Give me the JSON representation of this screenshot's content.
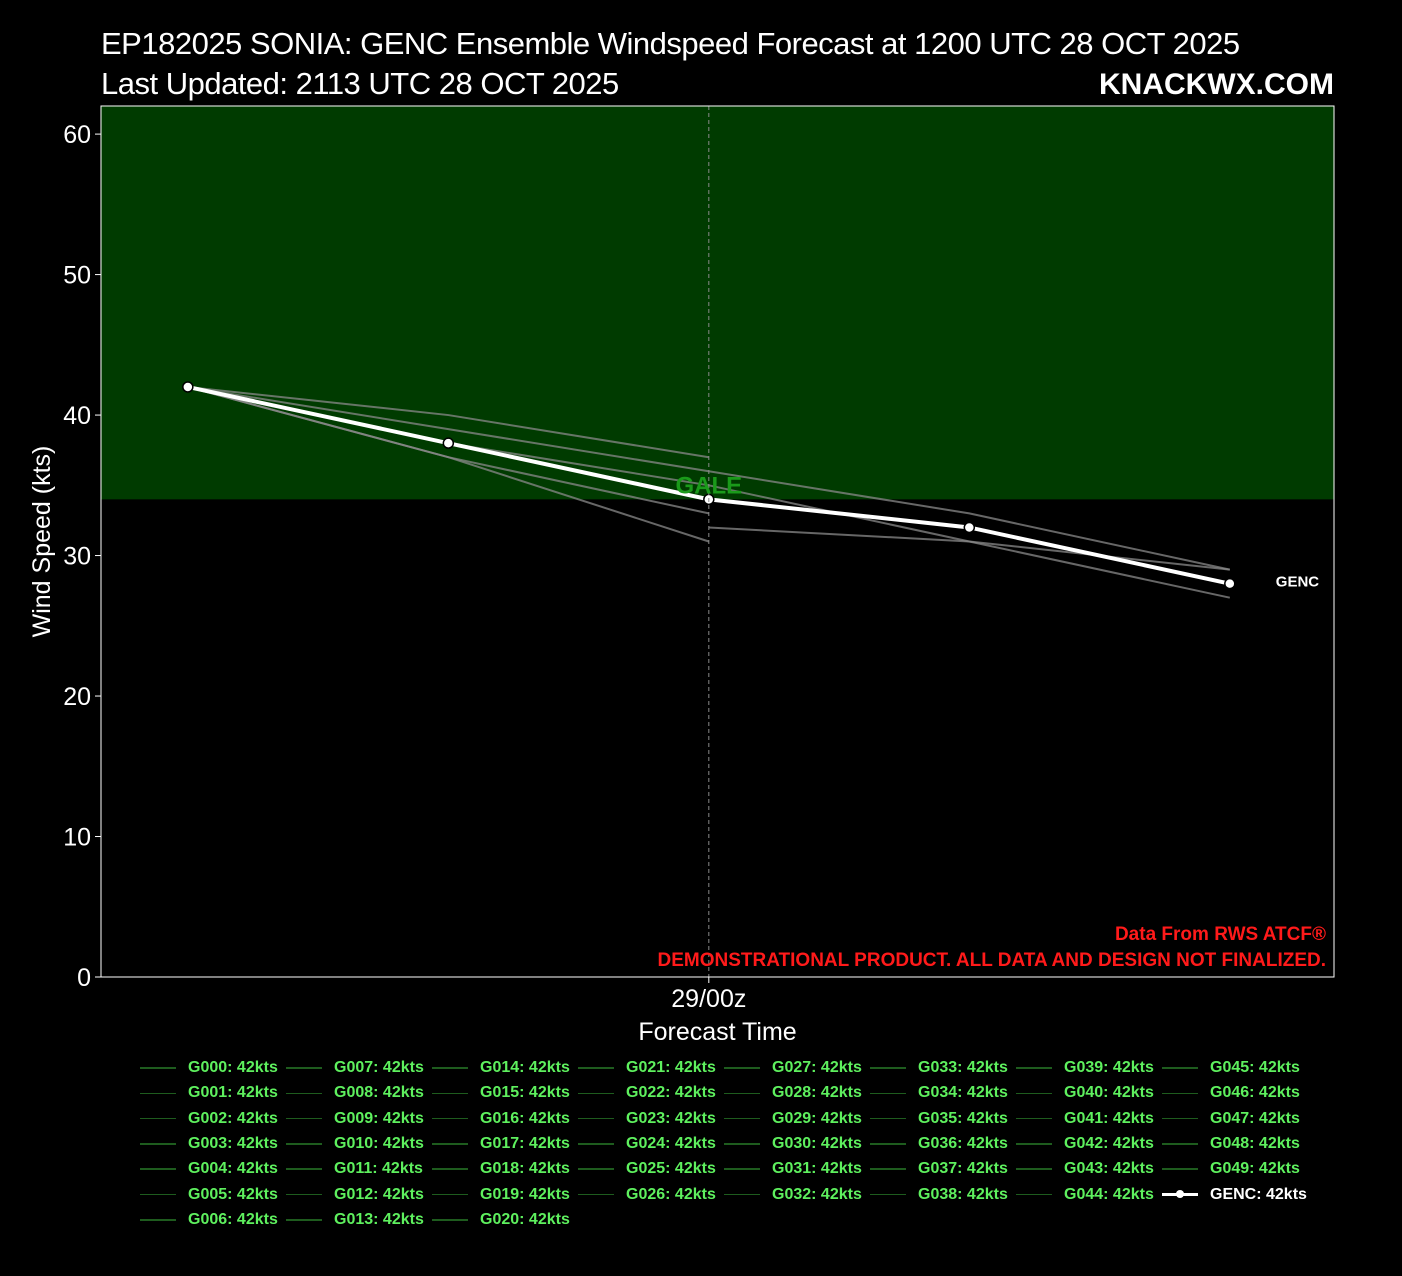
{
  "header": {
    "title": "EP182025 SONIA: GENC Ensemble Windspeed Forecast at 1200 UTC 28 OCT 2025",
    "subtitle": "Last Updated: 2113 UTC 28 OCT 2025",
    "brand": "KNACKWX.COM"
  },
  "colors": {
    "background": "#000000",
    "gale_band": "#003b00",
    "gale_label": "#1a9a1a",
    "member_line": "#8a8a8a",
    "genc_line": "#ffffff",
    "legend_text": "#5ef05e",
    "disclaimer": "#ff1a1a"
  },
  "annotations": {
    "gale_label": "GALE",
    "series_end_label": "GENC",
    "source": "Data From RWS ATCF®",
    "disclaimer": "DEMONSTRATIONAL PRODUCT. ALL DATA AND DESIGN NOT FINALIZED."
  },
  "chart_data": {
    "type": "line",
    "title": "EP182025 SONIA: GENC Ensemble Windspeed Forecast at 1200 UTC 28 OCT 2025",
    "xlabel": "Forecast Time",
    "ylabel": "Wind Speed (kts)",
    "x_hours": [
      0,
      6,
      12,
      18,
      24
    ],
    "x_tick_label": "29/00z",
    "x_tick_hour": 12,
    "ylim": [
      0,
      62
    ],
    "y_ticks": [
      0,
      10,
      20,
      30,
      40,
      50,
      60
    ],
    "gale_threshold": 34,
    "grid": false,
    "series": [
      {
        "name": "GENC",
        "values": [
          42,
          38,
          34,
          32,
          28
        ]
      },
      {
        "values": [
          42,
          40,
          37,
          null,
          null
        ]
      },
      {
        "values": [
          42,
          39,
          36,
          33,
          29
        ]
      },
      {
        "values": [
          42,
          38,
          35,
          31,
          27
        ]
      },
      {
        "values": [
          42,
          37,
          33,
          null,
          null
        ]
      },
      {
        "values": [
          42,
          37,
          31,
          null,
          null
        ]
      },
      {
        "values": [
          null,
          null,
          32,
          31,
          29
        ]
      }
    ]
  },
  "legend": {
    "columns": [
      [
        "G000: 42kts",
        "G001: 42kts",
        "G002: 42kts",
        "G003: 42kts",
        "G004: 42kts",
        "G005: 42kts",
        "G006: 42kts"
      ],
      [
        "G007: 42kts",
        "G008: 42kts",
        "G009: 42kts",
        "G010: 42kts",
        "G011: 42kts",
        "G012: 42kts",
        "G013: 42kts"
      ],
      [
        "G014: 42kts",
        "G015: 42kts",
        "G016: 42kts",
        "G017: 42kts",
        "G018: 42kts",
        "G019: 42kts",
        "G020: 42kts"
      ],
      [
        "G021: 42kts",
        "G022: 42kts",
        "G023: 42kts",
        "G024: 42kts",
        "G025: 42kts",
        "G026: 42kts"
      ],
      [
        "G027: 42kts",
        "G028: 42kts",
        "G029: 42kts",
        "G030: 42kts",
        "G031: 42kts",
        "G032: 42kts"
      ],
      [
        "G033: 42kts",
        "G034: 42kts",
        "G035: 42kts",
        "G036: 42kts",
        "G037: 42kts",
        "G038: 42kts"
      ],
      [
        "G039: 42kts",
        "G040: 42kts",
        "G041: 42kts",
        "G042: 42kts",
        "G043: 42kts",
        "G044: 42kts"
      ],
      [
        "G045: 42kts",
        "G046: 42kts",
        "G047: 42kts",
        "G048: 42kts",
        "G049: 42kts",
        "GENC: 42kts"
      ]
    ]
  }
}
